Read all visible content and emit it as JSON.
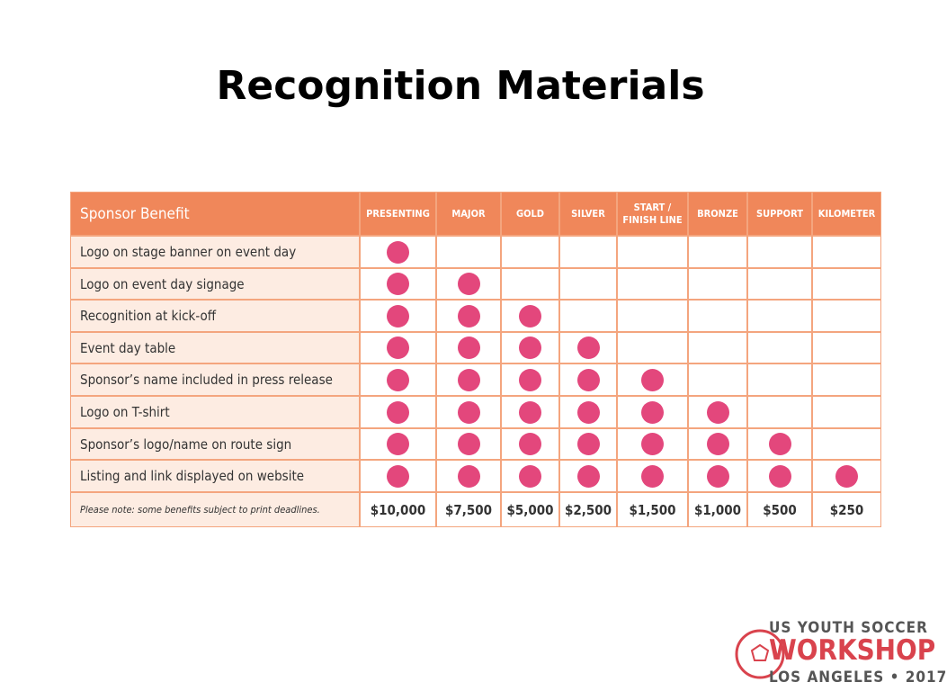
{
  "title": "Recognition Materials",
  "table": {
    "header": [
      "Sponsor Benefit",
      "PRESENTING",
      "MAJOR",
      "GOLD",
      "SILVER",
      "START /\nFINISH LINE",
      "BRONZE",
      "SUPPORT",
      "KILOMETER"
    ],
    "rows": [
      {
        "label": "Logo on stage banner on event day",
        "marks": [
          true,
          false,
          false,
          false,
          false,
          false,
          false,
          false
        ]
      },
      {
        "label": "Logo on event day signage",
        "marks": [
          true,
          true,
          false,
          false,
          false,
          false,
          false,
          false
        ]
      },
      {
        "label": "Recognition at kick-off",
        "marks": [
          true,
          true,
          true,
          false,
          false,
          false,
          false,
          false
        ]
      },
      {
        "label": "Event day table",
        "marks": [
          true,
          true,
          true,
          true,
          false,
          false,
          false,
          false
        ]
      },
      {
        "label": "Sponsor’s name included in press release",
        "marks": [
          true,
          true,
          true,
          true,
          true,
          false,
          false,
          false
        ]
      },
      {
        "label": "Logo on T-shirt",
        "marks": [
          true,
          true,
          true,
          true,
          true,
          true,
          false,
          false
        ]
      },
      {
        "label": "Sponsor’s logo/name on route sign",
        "marks": [
          true,
          true,
          true,
          true,
          true,
          true,
          true,
          false
        ]
      },
      {
        "label": "Listing and link displayed on website",
        "marks": [
          true,
          true,
          true,
          true,
          true,
          true,
          true,
          true
        ]
      }
    ],
    "footer": {
      "note": "Please note: some benefits subject to print deadlines.",
      "prices": [
        "$10,000",
        "$7,500",
        "$5,000",
        "$2,500",
        "$1,500",
        "$1,000",
        "$500",
        "$250"
      ]
    }
  },
  "logo": {
    "line1": "US YOUTH SOCCER",
    "line2": "WORKSHOP",
    "line3": "LOS ANGELES • 2017"
  }
}
